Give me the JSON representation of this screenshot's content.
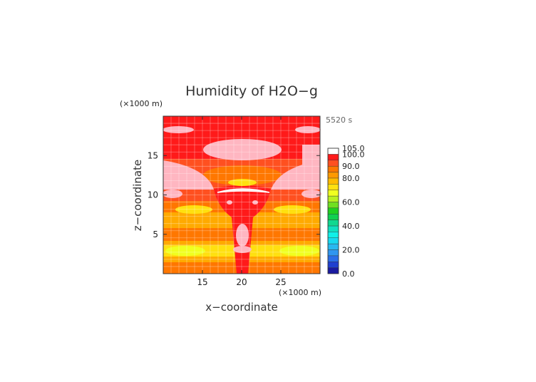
{
  "chart_data": {
    "type": "heatmap",
    "title": "Humidity of H2O−g",
    "xlabel": "x−coordinate",
    "ylabel": "z−coordinate",
    "x_unit": "(×1000 m)",
    "y_unit": "(×1000 m)",
    "time_label": "5520 s",
    "xlim": [
      10,
      30
    ],
    "ylim": [
      0,
      20
    ],
    "x_ticks": [
      "15",
      "20",
      "25"
    ],
    "y_ticks": [
      "5",
      "10",
      "15"
    ],
    "grid": true,
    "colorbar": {
      "labels": [
        "105.0",
        "100.0",
        "90.0",
        "80.0",
        "60.0",
        "40.0",
        "20.0",
        "0.0"
      ],
      "levels": [
        0,
        5,
        10,
        15,
        20,
        25,
        30,
        35,
        40,
        45,
        50,
        55,
        60,
        65,
        70,
        75,
        80,
        85,
        90,
        95,
        100,
        105
      ],
      "colors": [
        "#1a1aa0",
        "#1f3fd0",
        "#2a6ee8",
        "#2f96f0",
        "#28b8f0",
        "#18d8f0",
        "#10f0e8",
        "#10e0c0",
        "#10d890",
        "#10d050",
        "#20d020",
        "#70e020",
        "#b8f020",
        "#f0ff20",
        "#ffe010",
        "#ffbb00",
        "#ff9900",
        "#ff7700",
        "#ff5020",
        "#ff1a1a",
        "#ffffff"
      ]
    },
    "field_colors": {
      "over_100": "#ffb6c1",
      "95_100": "#ff1a1a",
      "90_95": "#ff5020",
      "85_90": "#ff7700",
      "80_85": "#ffaa00",
      "75_80": "#ffe010",
      "70_75": "#f0ff20"
    }
  }
}
